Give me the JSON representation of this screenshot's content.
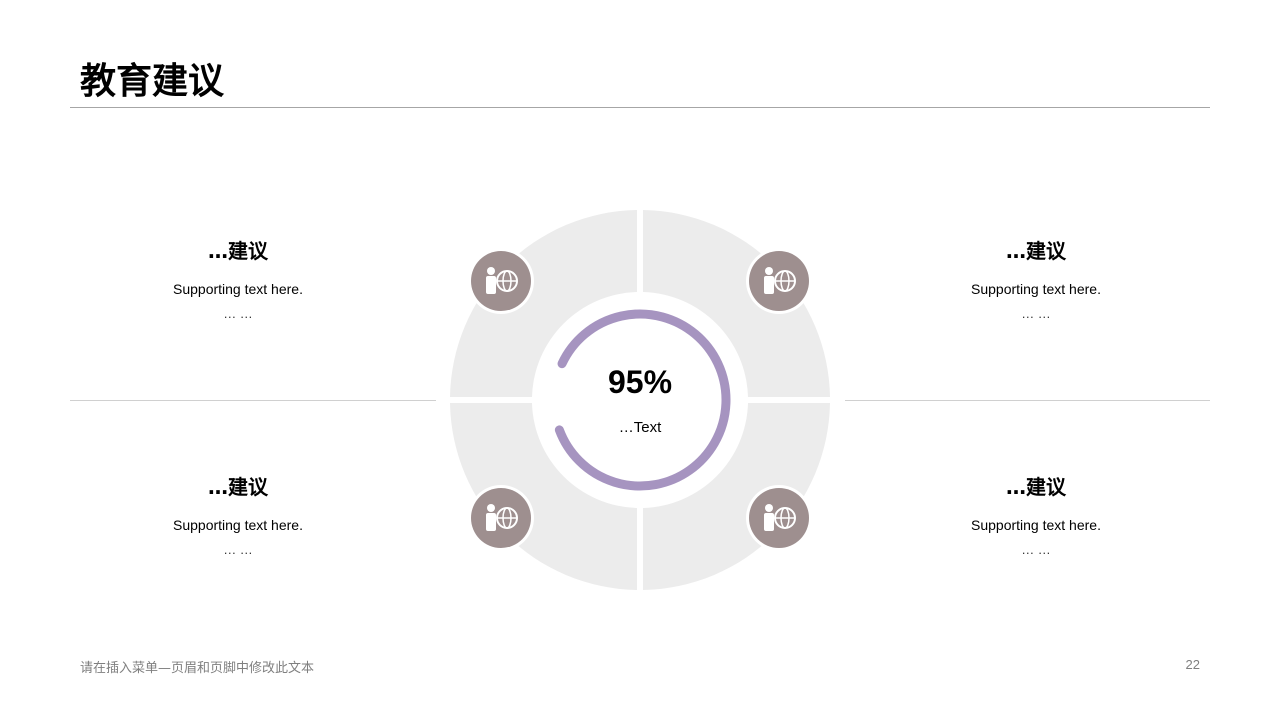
{
  "title": "教育建议",
  "blocks": [
    {
      "heading": "…建议",
      "support": "Supporting  text here.",
      "dots": "… …"
    },
    {
      "heading": "…建议",
      "support": "Supporting  text here.",
      "dots": "… …"
    },
    {
      "heading": "…建议",
      "support": "Supporting  text here.",
      "dots": "… …"
    },
    {
      "heading": "…建议",
      "support": "Supporting  text here.",
      "dots": "… …"
    }
  ],
  "center": {
    "value": "95%",
    "label": "…Text",
    "progress": 0.95
  },
  "colors": {
    "accent": "#a694c0",
    "icon_bg": "#9e8f8f",
    "segment": "#ececec"
  },
  "icon": "person-globe-icon",
  "footer": {
    "text": "请在插入菜单—页眉和页脚中修改此文本",
    "page": "22"
  }
}
